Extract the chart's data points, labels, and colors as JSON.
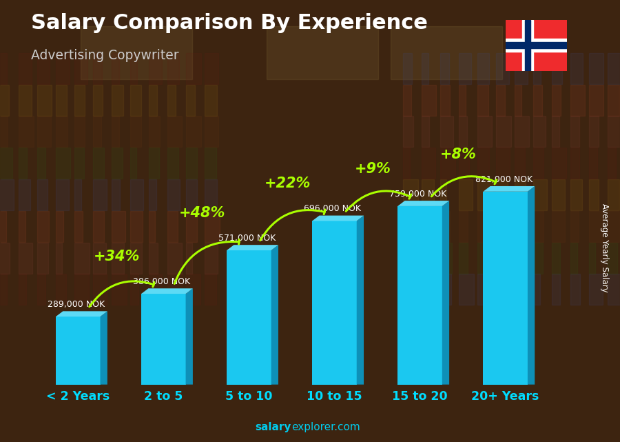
{
  "title": "Salary Comparison By Experience",
  "subtitle": "Advertising Copywriter",
  "ylabel": "Average Yearly Salary",
  "categories": [
    "< 2 Years",
    "2 to 5",
    "5 to 10",
    "10 to 15",
    "15 to 20",
    "20+ Years"
  ],
  "values": [
    289000,
    386000,
    571000,
    696000,
    759000,
    821000
  ],
  "salary_labels": [
    "289,000 NOK",
    "386,000 NOK",
    "571,000 NOK",
    "696,000 NOK",
    "759,000 NOK",
    "821,000 NOK"
  ],
  "pct_labels": [
    "+34%",
    "+48%",
    "+22%",
    "+9%",
    "+8%"
  ],
  "bar_color_face": "#1BC8F0",
  "bar_color_right": "#0E90B8",
  "bar_color_top": "#5DDAF5",
  "background_color": "#3d2410",
  "title_color": "#ffffff",
  "subtitle_color": "#cccccc",
  "label_color": "#ffffff",
  "pct_color": "#aaff00",
  "xtick_color": "#00DDFF",
  "source_bold": "salary",
  "source_normal": "explorer.com",
  "source_color": "#00CCEE",
  "flag_colors": {
    "red": "#EF2B2D",
    "blue": "#002868",
    "white": "#FFFFFF"
  }
}
